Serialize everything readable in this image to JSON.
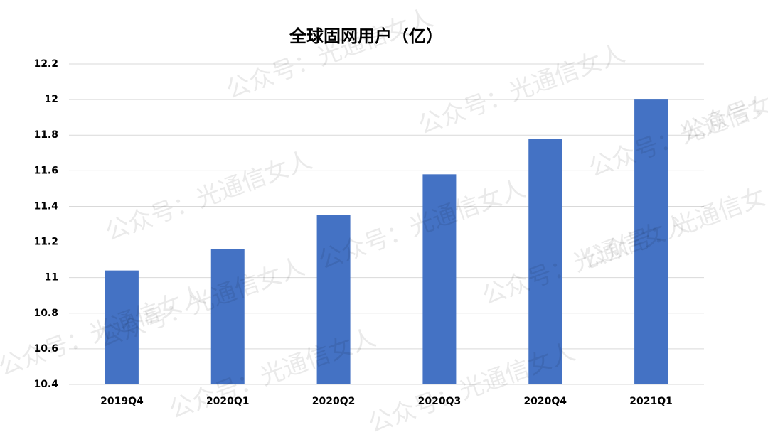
{
  "chart_data": {
    "type": "bar",
    "title": "全球固网用户（亿）",
    "categories": [
      "2019Q4",
      "2020Q1",
      "2020Q2",
      "2020Q3",
      "2020Q4",
      "2021Q1"
    ],
    "values": [
      11.04,
      11.16,
      11.35,
      11.58,
      11.78,
      12.0
    ],
    "color": "#4472c4",
    "ylim": [
      10.4,
      12.2
    ],
    "yticks": [
      10.4,
      10.6,
      10.8,
      11,
      11.2,
      11.4,
      11.6,
      11.8,
      12,
      12.2
    ],
    "grid": true,
    "watermark": "公众号：光通信女人"
  }
}
